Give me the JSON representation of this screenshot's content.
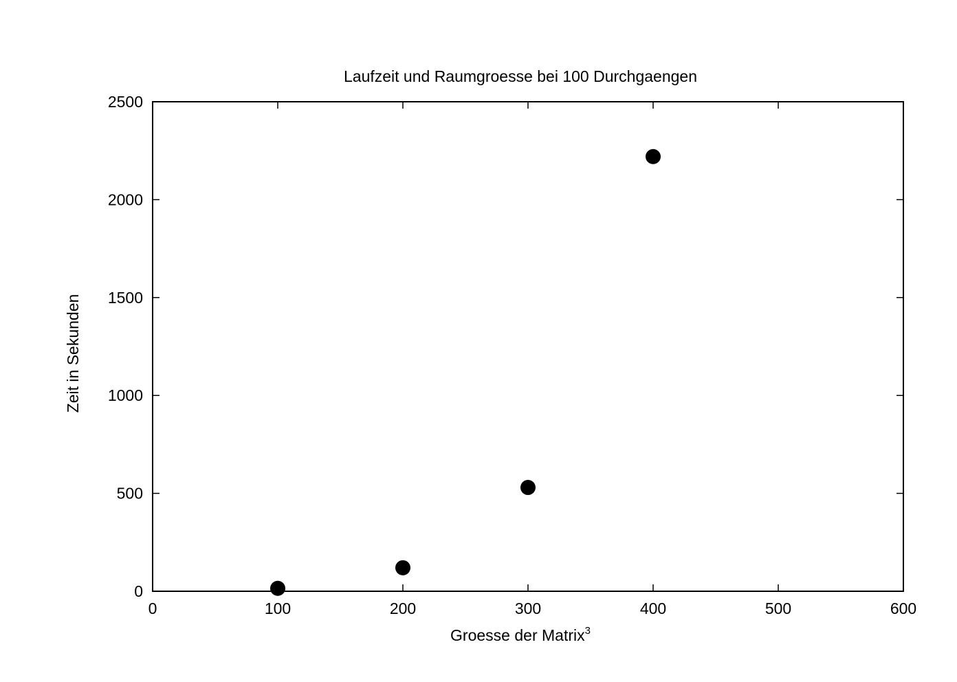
{
  "chart_data": {
    "type": "scatter",
    "title": "Laufzeit und Raumgroesse bei 100 Durchgaengen",
    "xlabel": "Groesse der Matrix",
    "xlabel_superscript": "3",
    "ylabel": "Zeit in Sekunden",
    "xlim": [
      0,
      600
    ],
    "ylim": [
      0,
      2500
    ],
    "xticks": [
      0,
      100,
      200,
      300,
      400,
      500,
      600
    ],
    "yticks": [
      0,
      500,
      1000,
      1500,
      2000,
      2500
    ],
    "grid": false,
    "series": [
      {
        "x": [
          100,
          200,
          300,
          400
        ],
        "values": [
          15,
          120,
          530,
          2220
        ],
        "color": "#000000",
        "marker": "filled-circle"
      }
    ]
  }
}
